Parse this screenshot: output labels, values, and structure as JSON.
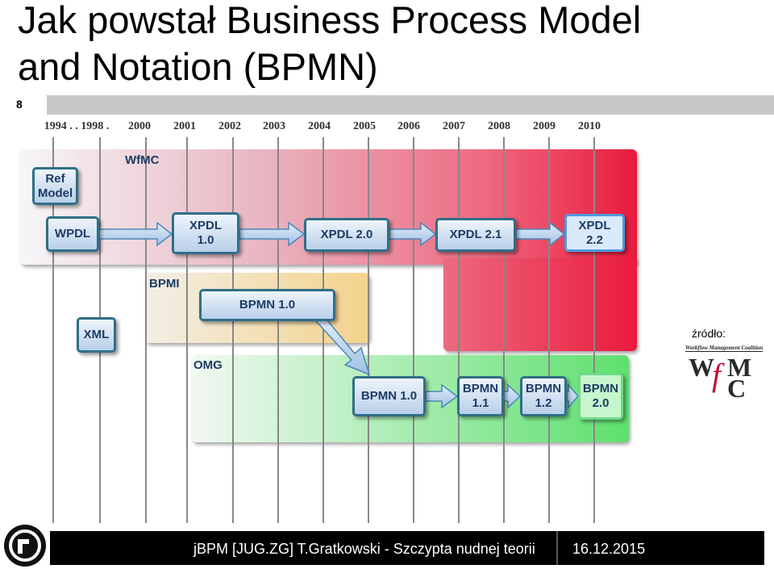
{
  "header": {
    "title_lines": [
      "Jak powstał Business Process Model",
      "and Notation (BPMN)"
    ],
    "slide_number": "8"
  },
  "timeline": [
    "1994 . . 1998 .",
    "2000",
    "2001",
    "2002",
    "2003",
    "2004",
    "2005",
    "2006",
    "2007",
    "2008",
    "2009",
    "2010"
  ],
  "groups": [
    {
      "label": "WfMC"
    },
    {
      "label": "BPMI"
    },
    {
      "label": "OMG"
    }
  ],
  "nodes": [
    {
      "lines": [
        "Ref",
        "Model"
      ]
    },
    {
      "lines": [
        "WPDL"
      ]
    },
    {
      "lines": [
        "XPDL",
        "1.0"
      ]
    },
    {
      "lines": [
        "XPDL 2.0"
      ]
    },
    {
      "lines": [
        "XPDL 2.1"
      ]
    },
    {
      "lines": [
        "XPDL",
        "2.2"
      ]
    },
    {
      "lines": [
        "XML"
      ]
    },
    {
      "lines": [
        "BPMN 1.0"
      ]
    },
    {
      "lines": [
        "BPMN 1.0"
      ]
    },
    {
      "lines": [
        "BPMN",
        "1.1"
      ]
    },
    {
      "lines": [
        "BPMN",
        "1.2"
      ]
    },
    {
      "lines": [
        "BPMN",
        "2.0"
      ]
    }
  ],
  "source": {
    "label": "źródło:",
    "logo_caption": "Workflow Management Coalition",
    "logo_letters": [
      "W",
      "f",
      "M",
      "C"
    ]
  },
  "footer": {
    "text": "jBPM [JUG.ZG] T.Gratkowski - Szczypta nudnej teorii",
    "date": "16.12.2015"
  }
}
